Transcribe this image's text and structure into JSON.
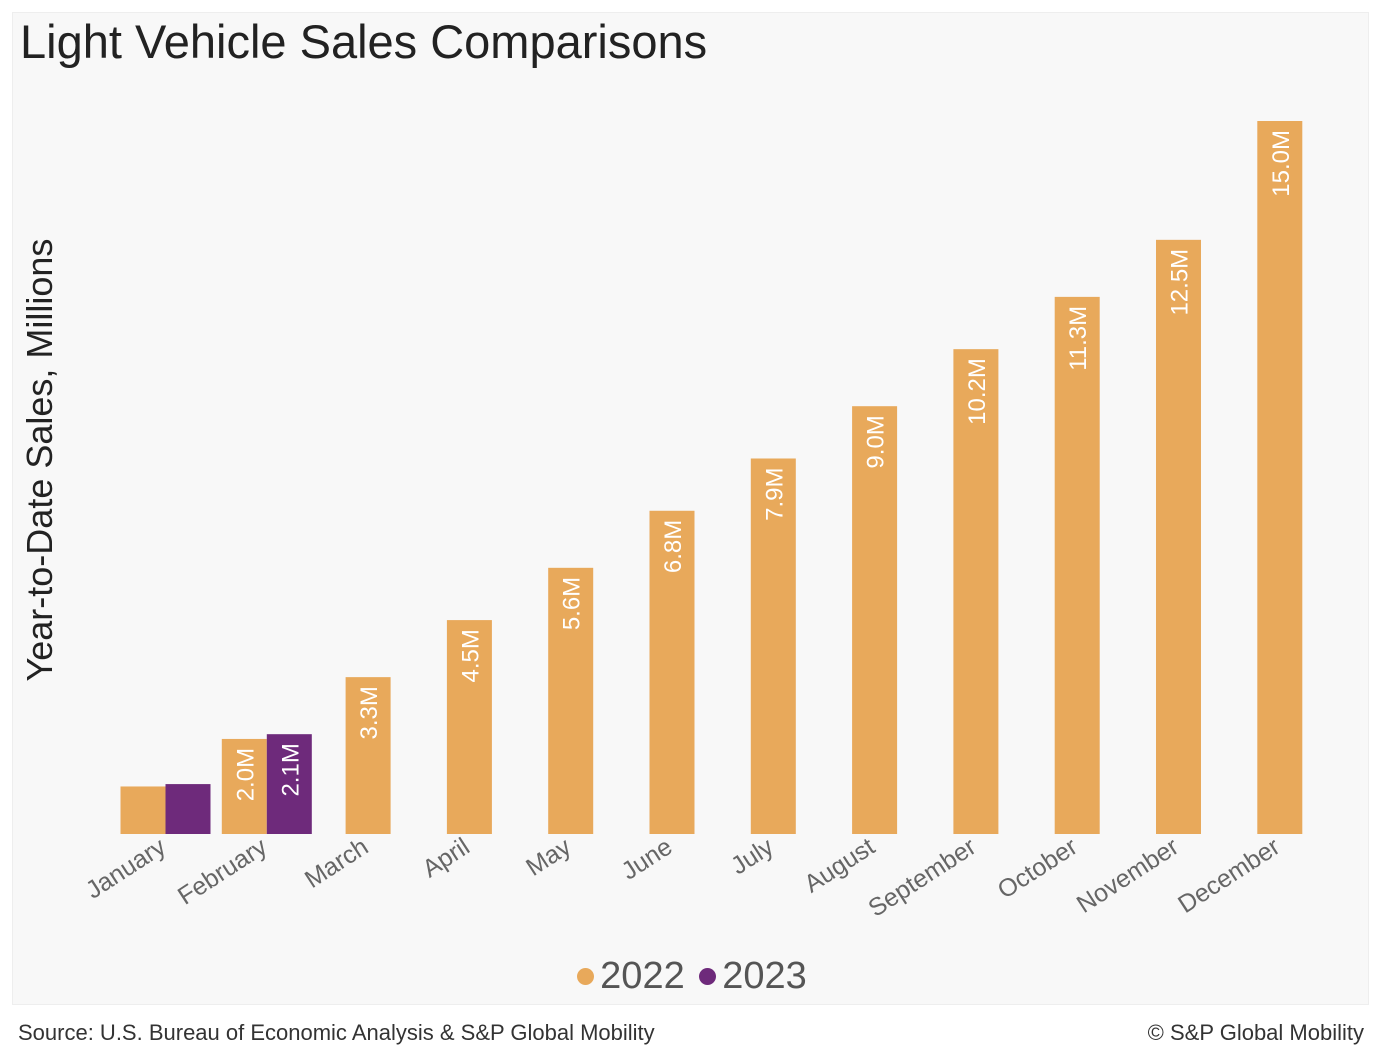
{
  "colors": {
    "s2022": "#e8a95b",
    "s2023": "#6e2a7b",
    "background": "#f8f8f8"
  },
  "footer": {
    "source": "Source: U.S. Bureau of Economic Analysis & S&P Global Mobility",
    "copyright": "© S&P Global Mobility"
  },
  "chart_data": {
    "type": "bar",
    "title": "Light Vehicle Sales Comparisons",
    "ylabel": "Year-to-Date Sales, Millions",
    "xlabel": "",
    "ylim": [
      0,
      15.5
    ],
    "grid": false,
    "legend": "bottom-center",
    "categories": [
      "January",
      "February",
      "March",
      "April",
      "May",
      "June",
      "July",
      "August",
      "September",
      "October",
      "November",
      "December"
    ],
    "series": [
      {
        "name": "2022",
        "color": "#e8a95b",
        "values": [
          1.0,
          2.0,
          3.3,
          4.5,
          5.6,
          6.8,
          7.9,
          9.0,
          10.2,
          11.3,
          12.5,
          15.0
        ],
        "labels": [
          "",
          "2.0M",
          "3.3M",
          "4.5M",
          "5.6M",
          "6.8M",
          "7.9M",
          "9.0M",
          "10.2M",
          "11.3M",
          "12.5M",
          "15.0M"
        ]
      },
      {
        "name": "2023",
        "color": "#6e2a7b",
        "values": [
          1.05,
          2.1,
          null,
          null,
          null,
          null,
          null,
          null,
          null,
          null,
          null,
          null
        ],
        "labels": [
          "",
          "2.1M",
          "",
          "",
          "",
          "",
          "",
          "",
          "",
          "",
          "",
          ""
        ]
      }
    ]
  }
}
